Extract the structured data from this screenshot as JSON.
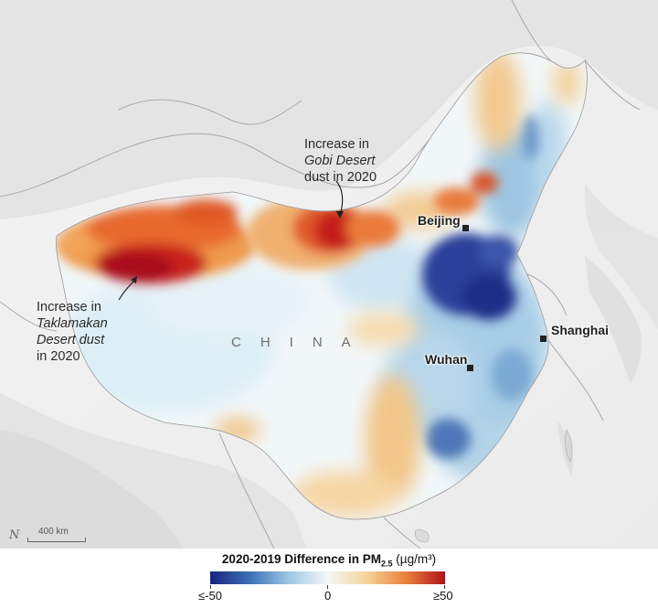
{
  "map": {
    "annotations": {
      "gobi": {
        "line1": "Increase in",
        "line2": "Gobi Desert",
        "line3": "dust in 2020"
      },
      "taklamakan": {
        "line1": "Increase in",
        "line2": "Taklamakan",
        "line3": "Desert dust",
        "line4": "in 2020"
      }
    },
    "cities": {
      "beijing": "Beijing",
      "shanghai": "Shanghai",
      "wuhan": "Wuhan"
    },
    "country_label": "CHINA",
    "scale_label": "400 km",
    "north_symbol": "N"
  },
  "legend": {
    "title_main": "2020-2019 Difference in PM",
    "title_sub": "2.5",
    "title_unit": "(µg/m³)",
    "min_label": "≤-50",
    "mid_label": "0",
    "max_label": "≥50",
    "colors": [
      "#1a237e",
      "#3a6fb5",
      "#9cc7e3",
      "#f4f7f8",
      "#f5d49a",
      "#e9813a",
      "#b0121b"
    ]
  }
}
